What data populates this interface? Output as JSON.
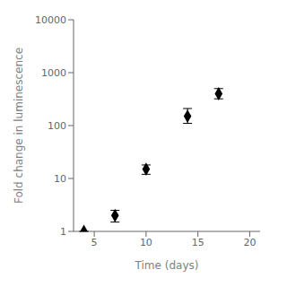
{
  "chart_data": {
    "type": "scatter",
    "x": [
      4,
      7,
      10,
      14,
      17
    ],
    "values": [
      1,
      2,
      15,
      150,
      400
    ],
    "yerr_low": [
      0,
      0.5,
      3,
      40,
      80
    ],
    "yerr_high": [
      0,
      0.5,
      3,
      60,
      100
    ],
    "xlabel": "Time (days)",
    "ylabel": "Fold change in luminescence",
    "xlim": [
      3,
      21
    ],
    "xticks": [
      5,
      10,
      15,
      20
    ],
    "ylim": [
      1,
      10000
    ],
    "yticks": [
      1,
      10,
      100,
      1000,
      10000
    ],
    "log": "y",
    "grid": false,
    "color": "#000000",
    "marker": "diamond"
  }
}
